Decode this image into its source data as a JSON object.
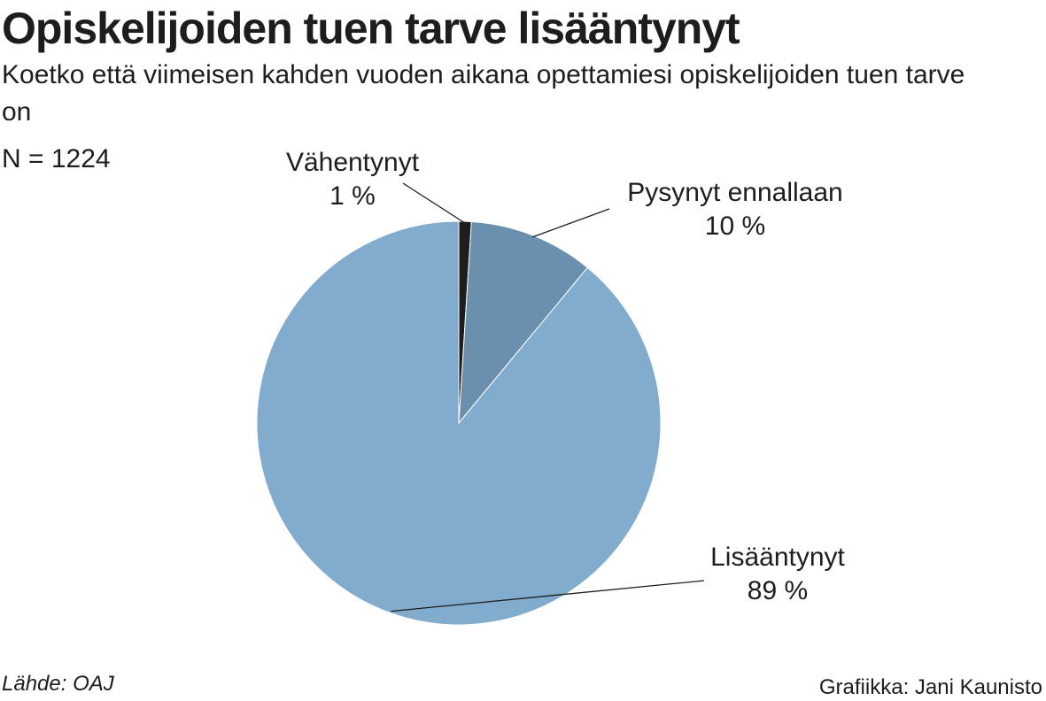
{
  "header": {
    "title": "Opiskelijoiden tuen tarve lisääntynyt",
    "subtitle": "Koetko että viimeisen kahden vuoden aikana opettamiesi opiskelijoiden tuen tarve on",
    "n_label": "N = 1224"
  },
  "footer": {
    "source": "Lähde: OAJ",
    "credit": "Grafiikka: Jani Kaunisto"
  },
  "chart_data": {
    "type": "pie",
    "title": "Opiskelijoiden tuen tarve lisääntynyt",
    "subtitle": "Koetko että viimeisen kahden vuoden aikana opettamiesi opiskelijoiden tuen tarve on",
    "n": 1224,
    "slices": [
      {
        "label": "Vähentynyt",
        "value": 1,
        "value_label": "1 %",
        "color": "#1d1d1b"
      },
      {
        "label": "Pysynyt ennallaan",
        "value": 10,
        "value_label": "10 %",
        "color": "#6a90ad"
      },
      {
        "label": "Lisääntynyt",
        "value": 89,
        "value_label": "89 %",
        "color": "#81acce"
      }
    ],
    "start_angle": "12 o'clock",
    "direction": "clockwise",
    "legend": "none (labels with leader lines)"
  }
}
